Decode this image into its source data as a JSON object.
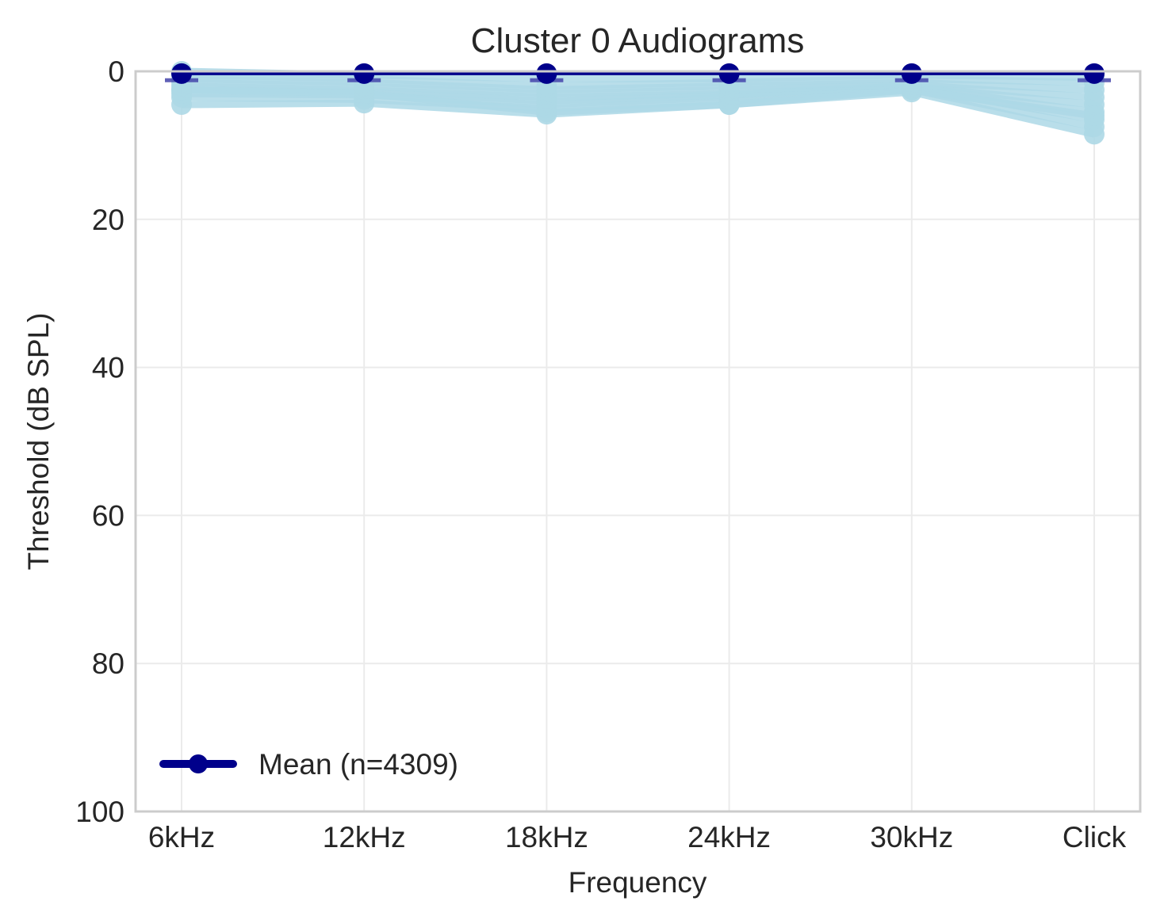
{
  "chart_data": {
    "type": "line",
    "title": "Cluster 0 Audiograms",
    "xlabel": "Frequency",
    "ylabel": "Threshold (dB SPL)",
    "categories": [
      "6kHz",
      "12kHz",
      "18kHz",
      "24kHz",
      "30kHz",
      "Click"
    ],
    "ylim": [
      0,
      100
    ],
    "y_inverted": true,
    "yticks": [
      0,
      20,
      40,
      60,
      80,
      100
    ],
    "grid": true,
    "legend_position": "bottom-left",
    "individual_color": "#add8e6",
    "mean_color": "#00008b",
    "errorbar_color": "#4444aa",
    "individual_series": [
      [
        4.5,
        4.3,
        5.8,
        4.5,
        2.8,
        8.5
      ],
      [
        3.5,
        3.8,
        5.0,
        4.0,
        2.5,
        7.5
      ],
      [
        3.0,
        3.2,
        4.5,
        3.5,
        2.2,
        6.5
      ],
      [
        2.5,
        2.8,
        4.0,
        3.2,
        2.0,
        5.5
      ],
      [
        2.0,
        2.5,
        3.5,
        3.0,
        2.0,
        4.5
      ],
      [
        1.5,
        2.0,
        3.0,
        2.5,
        1.8,
        3.5
      ],
      [
        1.0,
        1.5,
        2.5,
        2.0,
        1.5,
        2.5
      ],
      [
        0.5,
        1.0,
        2.0,
        1.5,
        1.0,
        1.5
      ],
      [
        0.0,
        0.5,
        1.0,
        1.0,
        0.5,
        0.8
      ],
      [
        2.5,
        3.0,
        5.5,
        4.5,
        2.5,
        6.0
      ]
    ],
    "series": [
      {
        "name": "Mean (n=4309)",
        "values": [
          0.2,
          0.2,
          0.2,
          0.2,
          0.2,
          0.2
        ],
        "error": [
          1.0,
          1.0,
          1.0,
          1.0,
          1.0,
          1.0
        ]
      }
    ]
  }
}
